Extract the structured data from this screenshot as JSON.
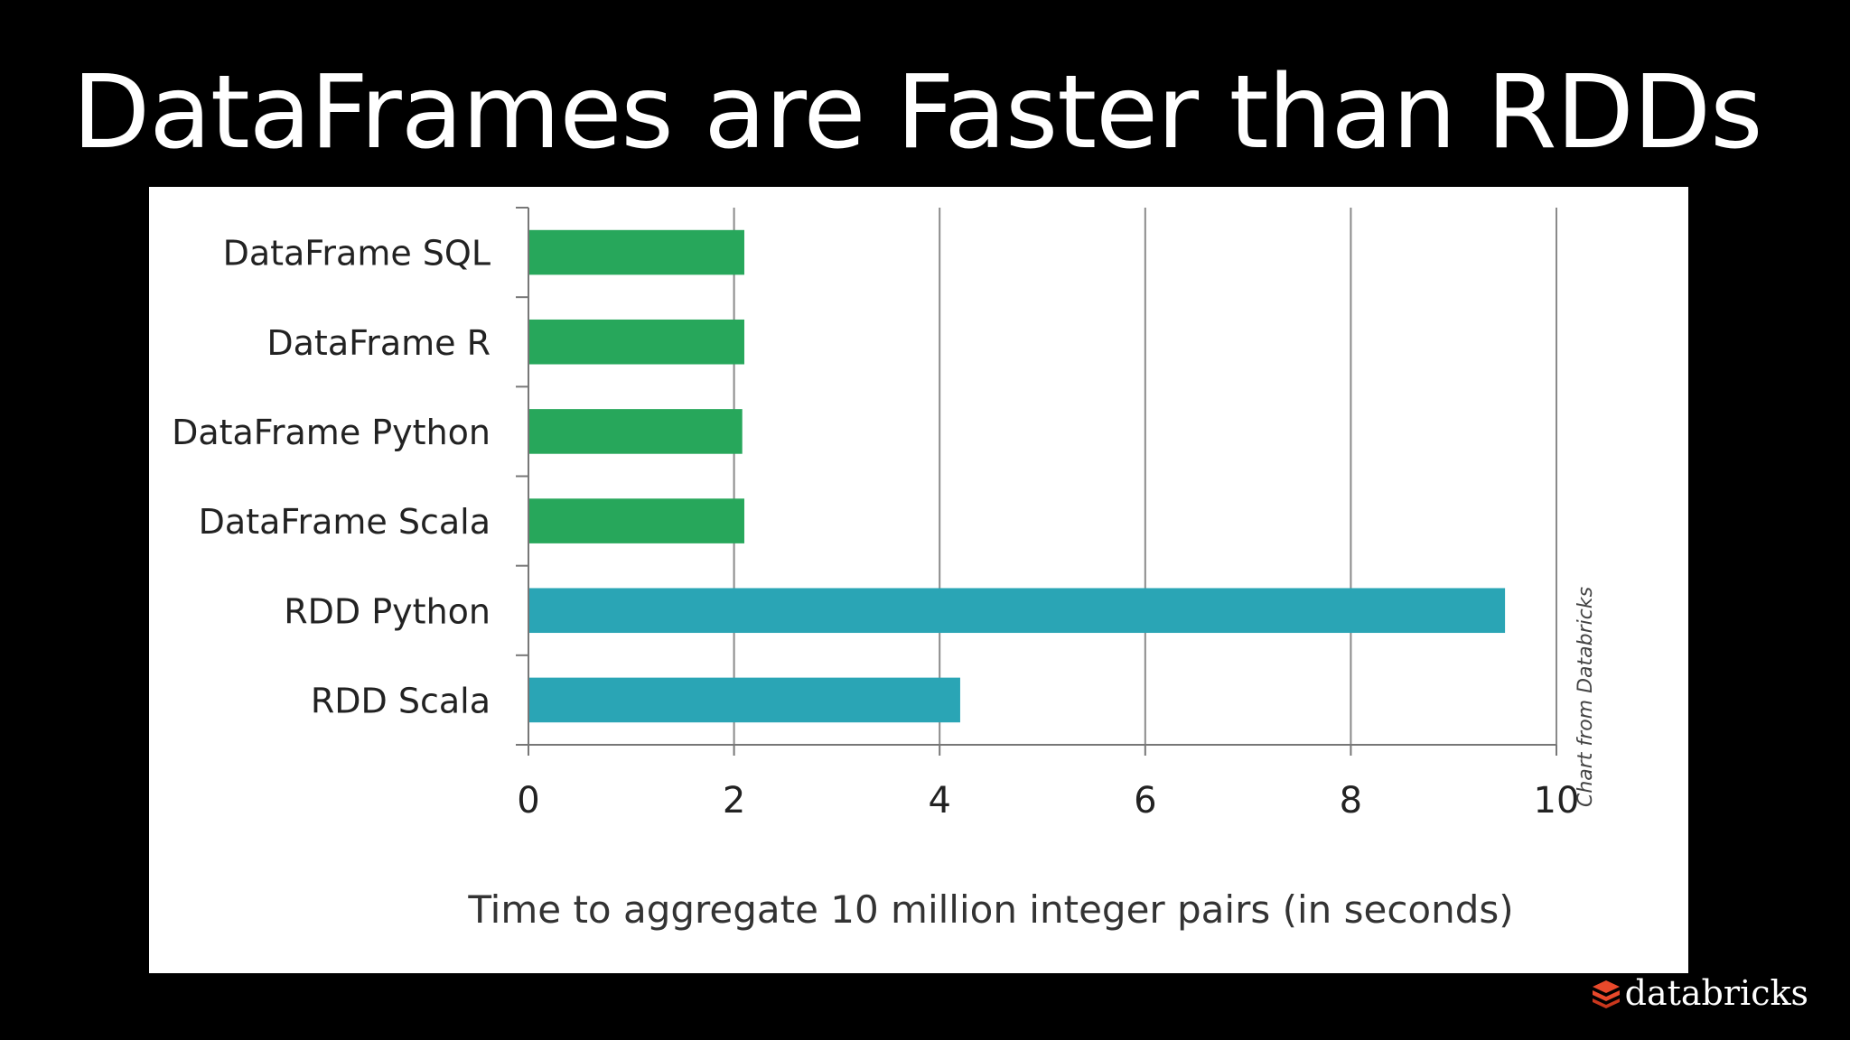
{
  "slide": {
    "title": "DataFrames are Faster than RDDs"
  },
  "brand": {
    "name": "databricks",
    "logo_icon": "databricks-stack-icon",
    "logo_color": "#e8492b"
  },
  "chart_data": {
    "type": "bar",
    "orientation": "horizontal",
    "categories": [
      "DataFrame SQL",
      "DataFrame R",
      "DataFrame Python",
      "DataFrame Scala",
      "RDD Python",
      "RDD Scala"
    ],
    "values": [
      2.1,
      2.1,
      2.08,
      2.1,
      9.5,
      4.2
    ],
    "colors": [
      "#27a75b",
      "#27a75b",
      "#27a75b",
      "#27a75b",
      "#2aa5b5",
      "#2aa5b5"
    ],
    "xlabel": "Time to aggregate 10 million integer pairs (in seconds)",
    "xlim": [
      0,
      10
    ],
    "xticks": [
      0,
      2,
      4,
      6,
      8,
      10
    ],
    "grid": true,
    "source_note": "Chart from Databricks"
  }
}
